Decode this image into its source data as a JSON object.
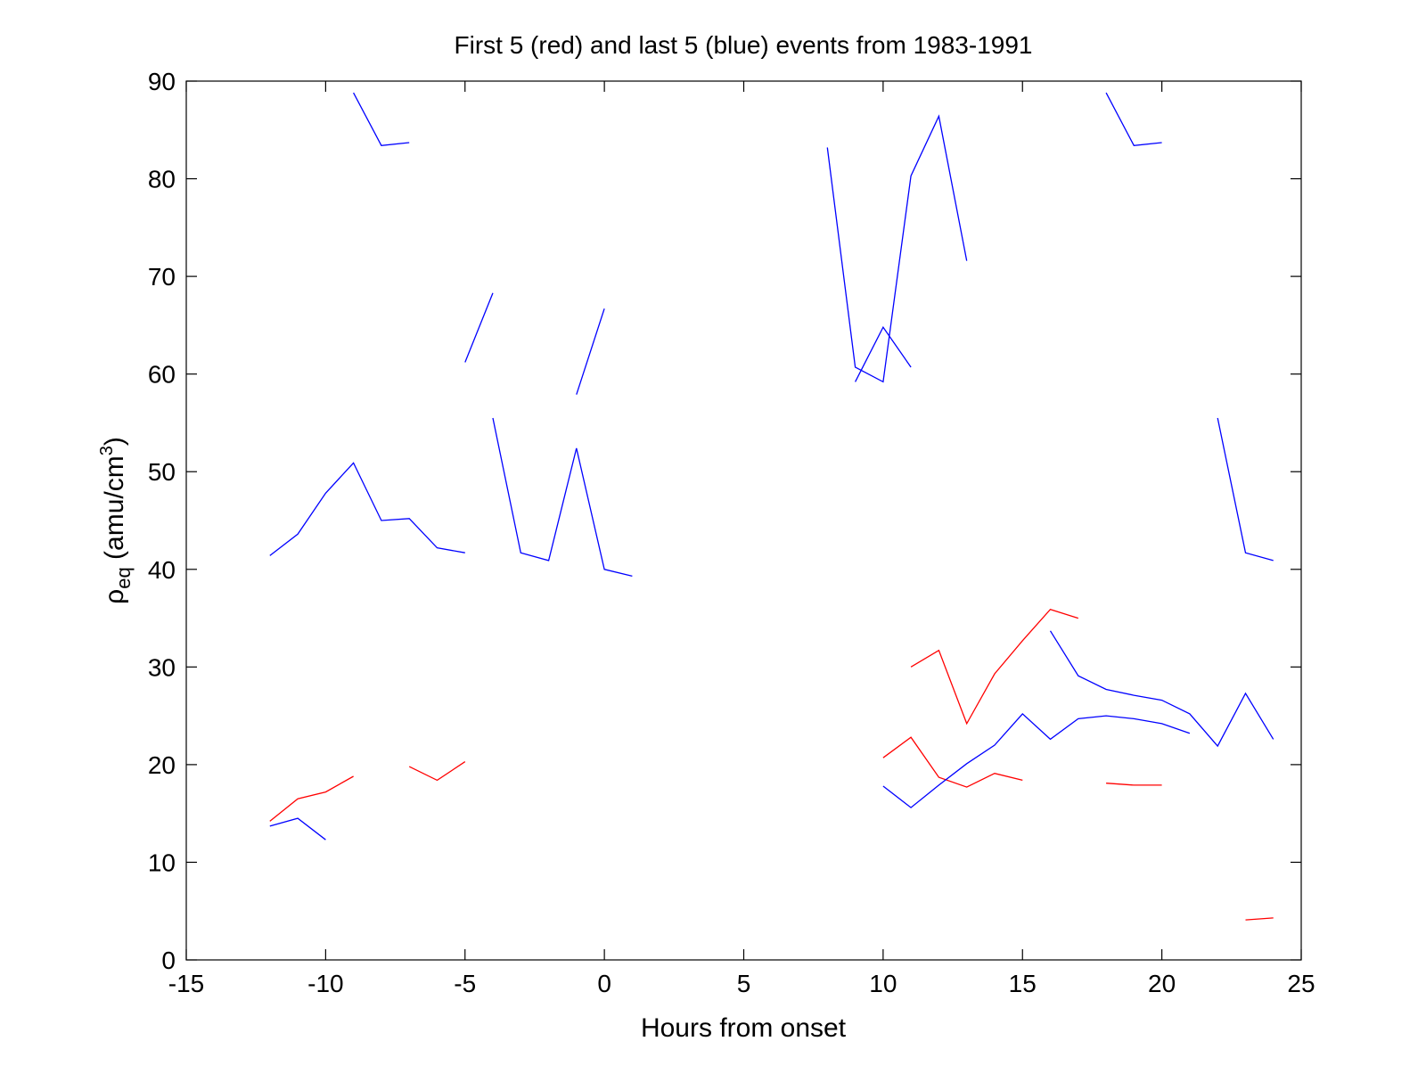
{
  "chart_data": {
    "type": "line",
    "title": "First 5 (red) and last 5 (blue) events from 1983-1991",
    "xlabel": "Hours from onset",
    "ylabel": {
      "rho": "ρ",
      "sub": "eq",
      "units_open": " (amu/cm",
      "sup": "3",
      "units_close": ")"
    },
    "xlim": [
      -15,
      25
    ],
    "ylim": [
      0,
      90
    ],
    "xticks": [
      -15,
      -10,
      -5,
      0,
      5,
      10,
      15,
      20,
      25
    ],
    "yticks": [
      0,
      10,
      20,
      30,
      40,
      50,
      60,
      70,
      80,
      90
    ],
    "xtick_labels": [
      "-15",
      "-10",
      "-5",
      "0",
      "5",
      "10",
      "15",
      "20",
      "25"
    ],
    "ytick_labels": [
      "0",
      "10",
      "20",
      "30",
      "40",
      "50",
      "60",
      "70",
      "80",
      "90"
    ],
    "grid": false,
    "colors": {
      "red": "#ff0000",
      "blue": "#0000ff"
    },
    "series": [
      {
        "color": "red",
        "x": [
          -12,
          -11,
          -10,
          -9
        ],
        "y": [
          14.2,
          16.5,
          17.2,
          18.8
        ]
      },
      {
        "color": "red",
        "x": [
          -7,
          -6,
          -5
        ],
        "y": [
          19.8,
          18.4,
          20.3
        ]
      },
      {
        "color": "red",
        "x": [
          10,
          11,
          12,
          13,
          14,
          15
        ],
        "y": [
          20.7,
          22.8,
          18.7,
          17.7,
          19.1,
          18.4
        ]
      },
      {
        "color": "red",
        "x": [
          11,
          12,
          13,
          14,
          15,
          16,
          17
        ],
        "y": [
          30.0,
          31.7,
          24.2,
          29.3,
          32.7,
          35.9,
          35.0
        ]
      },
      {
        "color": "red",
        "x": [
          18,
          19,
          20
        ],
        "y": [
          18.1,
          17.9,
          17.9
        ]
      },
      {
        "color": "red",
        "x": [
          23,
          24
        ],
        "y": [
          4.1,
          4.3
        ]
      },
      {
        "color": "blue",
        "x": [
          -12,
          -11,
          -10
        ],
        "y": [
          13.7,
          14.5,
          12.3
        ]
      },
      {
        "color": "blue",
        "x": [
          -12,
          -11,
          -10,
          -9,
          -8,
          -7,
          -6,
          -5
        ],
        "y": [
          41.4,
          43.6,
          47.8,
          50.9,
          45.0,
          45.2,
          42.2,
          41.7
        ]
      },
      {
        "color": "blue",
        "x": [
          -9,
          -8,
          -7
        ],
        "y": [
          88.8,
          83.4,
          83.7
        ]
      },
      {
        "color": "blue",
        "x": [
          -5,
          -4
        ],
        "y": [
          61.2,
          68.3
        ]
      },
      {
        "color": "blue",
        "x": [
          -1,
          0
        ],
        "y": [
          57.9,
          66.7
        ]
      },
      {
        "color": "blue",
        "x": [
          -4,
          -3,
          -2,
          -1,
          0,
          1
        ],
        "y": [
          55.5,
          41.7,
          40.9,
          52.4,
          40.0,
          39.3
        ]
      },
      {
        "color": "blue",
        "x": [
          8,
          9,
          10,
          11,
          12,
          13
        ],
        "y": [
          83.2,
          60.7,
          59.2,
          80.3,
          86.4,
          71.6
        ]
      },
      {
        "color": "blue",
        "x": [
          9,
          10,
          11
        ],
        "y": [
          59.2,
          64.8,
          60.7
        ]
      },
      {
        "color": "blue",
        "x": [
          10,
          11,
          12,
          13,
          14,
          15,
          16,
          17,
          18,
          19,
          20,
          21
        ],
        "y": [
          17.8,
          15.6,
          17.9,
          20.1,
          22.0,
          25.2,
          22.6,
          24.7,
          25.0,
          24.7,
          24.2,
          23.2
        ]
      },
      {
        "color": "blue",
        "x": [
          16,
          17,
          18,
          19,
          20,
          21,
          22,
          23,
          24
        ],
        "y": [
          33.7,
          29.1,
          27.7,
          27.1,
          26.6,
          25.2,
          21.9,
          27.3,
          22.6
        ]
      },
      {
        "color": "blue",
        "x": [
          18,
          19,
          20
        ],
        "y": [
          88.8,
          83.4,
          83.7
        ]
      },
      {
        "color": "blue",
        "x": [
          22,
          23,
          24
        ],
        "y": [
          55.5,
          41.7,
          40.9
        ]
      }
    ]
  }
}
